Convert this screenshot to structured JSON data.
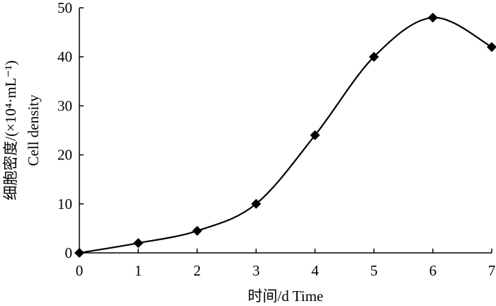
{
  "chart_data": {
    "type": "line",
    "x": [
      0,
      1,
      2,
      3,
      4,
      5,
      6,
      7
    ],
    "series": [
      {
        "values": [
          0,
          2,
          4.5,
          10,
          24,
          40,
          48,
          42
        ],
        "marker": "diamond",
        "color": "#000000",
        "smooth": true
      }
    ],
    "xlabel": "时间/d  Time",
    "ylabel_line1": "细胞密度/(×10⁴·mL⁻¹)",
    "ylabel_line2": "Cell density",
    "xlim": [
      0,
      7
    ],
    "ylim": [
      0,
      50
    ],
    "xticks": [
      "0",
      "1",
      "2",
      "3",
      "4",
      "5",
      "6",
      "7"
    ],
    "yticks": [
      "0",
      "10",
      "20",
      "30",
      "40",
      "50"
    ],
    "grid": false,
    "legend": "none"
  }
}
